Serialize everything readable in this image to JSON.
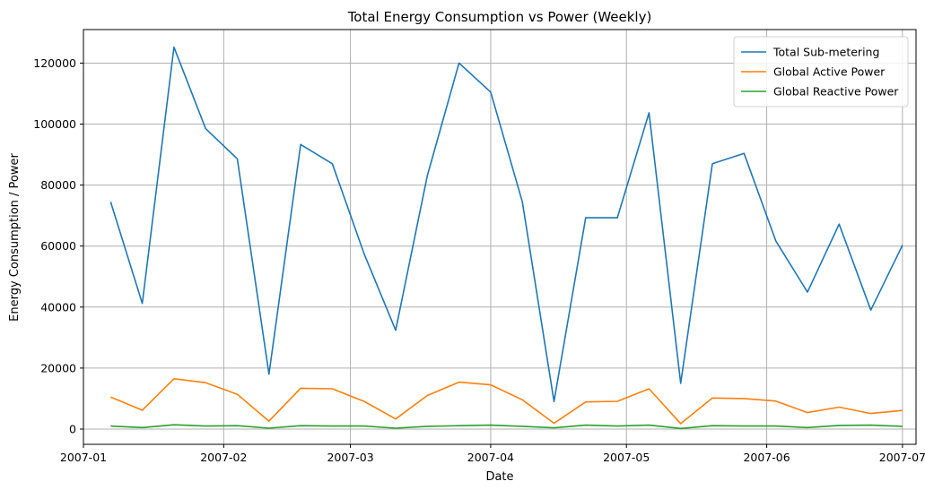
{
  "chart_data": {
    "type": "line",
    "title": "Total Energy Consumption vs Power (Weekly)",
    "xlabel": "Date",
    "ylabel": "Energy Consumption / Power",
    "x": [
      "2007-01-07",
      "2007-01-14",
      "2007-01-21",
      "2007-01-28",
      "2007-02-04",
      "2007-02-11",
      "2007-02-18",
      "2007-02-25",
      "2007-03-04",
      "2007-03-11",
      "2007-03-18",
      "2007-03-25",
      "2007-04-01",
      "2007-04-08",
      "2007-04-15",
      "2007-04-22",
      "2007-04-29",
      "2007-05-06",
      "2007-05-13",
      "2007-05-20",
      "2007-05-27",
      "2007-06-03",
      "2007-06-10",
      "2007-06-17",
      "2007-06-24",
      "2007-07-01"
    ],
    "x_ticks": [
      "2007-01",
      "2007-02",
      "2007-03",
      "2007-04",
      "2007-05",
      "2007-06",
      "2007-07"
    ],
    "xlim": [
      "2007-01-01",
      "2007-07-04"
    ],
    "ylim": [
      -5000,
      131000
    ],
    "y_ticks": [
      0,
      20000,
      40000,
      60000,
      80000,
      100000,
      120000
    ],
    "grid": true,
    "legend_position": "top-right",
    "series": [
      {
        "name": "Total Sub-metering",
        "color": "#1f77b4",
        "values": [
          74500,
          41200,
          125200,
          98500,
          88600,
          18000,
          93300,
          87000,
          57600,
          32400,
          83100,
          120000,
          110500,
          74500,
          9000,
          69300,
          69300,
          103700,
          15000,
          87000,
          90400,
          61700,
          44900,
          67200,
          39000,
          60300
        ]
      },
      {
        "name": "Global Active Power",
        "color": "#ff7f0e",
        "values": [
          10500,
          6200,
          16500,
          15200,
          11400,
          2600,
          13400,
          13200,
          9100,
          3300,
          11000,
          15400,
          14500,
          9600,
          1900,
          8900,
          9100,
          13200,
          1800,
          10200,
          10000,
          9200,
          5400,
          7200,
          5100,
          6100
        ]
      },
      {
        "name": "Global Reactive Power",
        "color": "#2ca02c",
        "values": [
          1000,
          500,
          1400,
          1000,
          1100,
          300,
          1100,
          1000,
          1000,
          300,
          900,
          1100,
          1300,
          900,
          400,
          1300,
          1000,
          1300,
          200,
          1100,
          1000,
          1000,
          500,
          1200,
          1300,
          900
        ]
      }
    ]
  }
}
